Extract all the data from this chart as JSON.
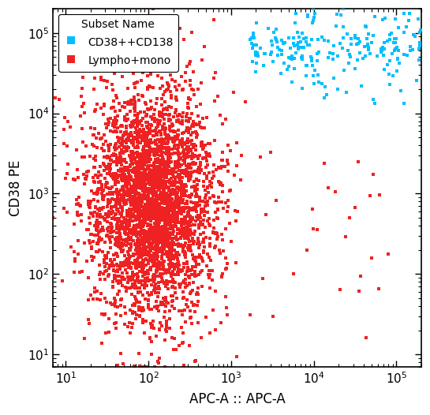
{
  "title": "",
  "xlabel": "APC-A :: APC-A",
  "ylabel": "CD38 PE",
  "xlim": [
    7,
    200000
  ],
  "ylim": [
    7,
    200000
  ],
  "legend_title": "Subset Name",
  "series": [
    {
      "label": "CD38++CD138",
      "color": "#00BFFF",
      "marker": "s",
      "marker_size": 3.5
    },
    {
      "label": "Lympho+mono",
      "color": "#EE2222",
      "marker": "s",
      "marker_size": 3.5
    }
  ],
  "background_color": "#FFFFFF",
  "axis_linewidth": 1.2,
  "tick_labelsize": 11,
  "label_fontsize": 12,
  "legend_fontsize": 10
}
